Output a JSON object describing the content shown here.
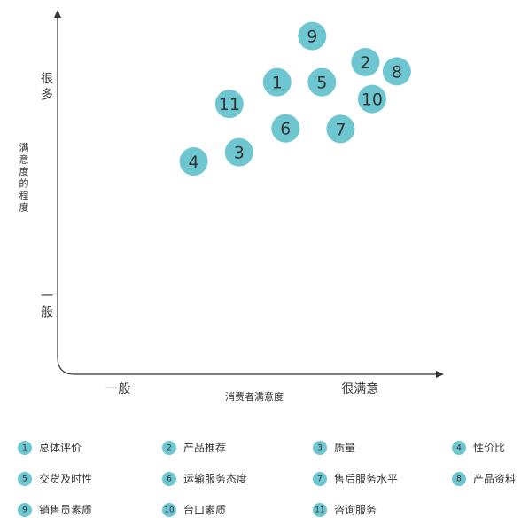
{
  "chart_data": {
    "type": "scatter",
    "xlabel": "消费者满意度",
    "ylabel": "满意度的程度",
    "x_ticks": [
      {
        "value": 1,
        "label": "一般"
      },
      {
        "value": 5,
        "label": "很满意"
      }
    ],
    "y_ticks": [
      {
        "value": 1,
        "label": "一般"
      },
      {
        "value": 5,
        "label": "很多"
      }
    ],
    "xlim": [
      0,
      6.3
    ],
    "ylim": [
      -0.3,
      6.3
    ],
    "grid": false,
    "legend_position": "bottom",
    "marker_color": "#6ec6d1",
    "points": [
      {
        "id": "1",
        "name": "总体评价",
        "x": 3.63,
        "y": 5.08
      },
      {
        "id": "2",
        "name": "产品推荐",
        "x": 5.09,
        "y": 5.45
      },
      {
        "id": "3",
        "name": "质量",
        "x": 3.0,
        "y": 3.79
      },
      {
        "id": "4",
        "name": "性价比",
        "x": 2.25,
        "y": 3.62
      },
      {
        "id": "5",
        "name": "交货及时性",
        "x": 4.37,
        "y": 5.08
      },
      {
        "id": "6",
        "name": "运输服务态度",
        "x": 3.77,
        "y": 4.23
      },
      {
        "id": "7",
        "name": "售后服务水平",
        "x": 4.68,
        "y": 4.22
      },
      {
        "id": "8",
        "name": "产品资料",
        "x": 5.61,
        "y": 5.28
      },
      {
        "id": "9",
        "name": "销售员素质",
        "x": 4.21,
        "y": 5.93
      },
      {
        "id": "10",
        "name": "台口素质",
        "x": 5.2,
        "y": 4.77
      },
      {
        "id": "11",
        "name": "咨询服务",
        "x": 2.84,
        "y": 4.68
      }
    ]
  }
}
